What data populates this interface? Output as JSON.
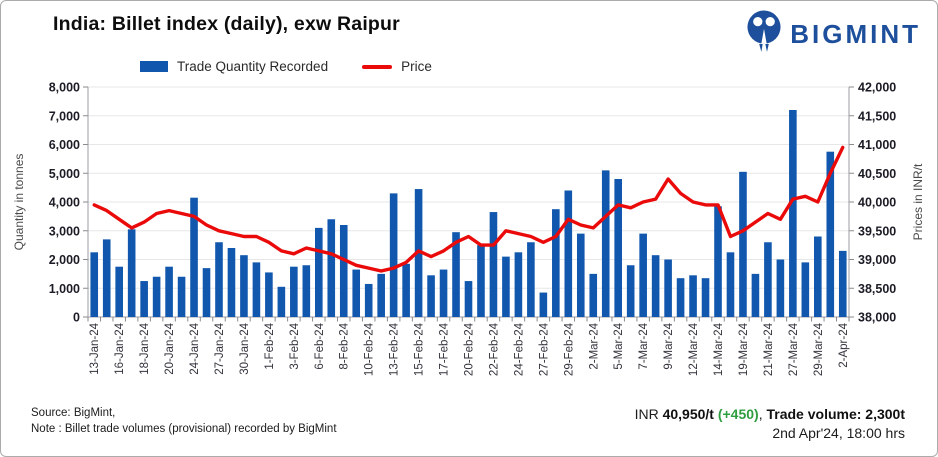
{
  "header": {
    "title": "India: Billet index (daily), exw Raipur",
    "logo_text": "BIGMINT",
    "logo_color": "#1d4f9c"
  },
  "legend": [
    {
      "label": "Trade Quantity Recorded",
      "color": "#1057ad",
      "type": "bar"
    },
    {
      "label": "Price",
      "color": "#ea0a0a",
      "type": "line"
    }
  ],
  "chart_data": {
    "type": "bar+line combo",
    "categories": [
      "13-Jan-24",
      "",
      "16-Jan-24",
      "",
      "18-Jan-24",
      "",
      "20-Jan-24",
      "",
      "24-Jan-24",
      "",
      "27-Jan-24",
      "",
      "30-Jan-24",
      "",
      "1-Feb-24",
      "",
      "3-Feb-24",
      "",
      "6-Feb-24",
      "",
      "8-Feb-24",
      "",
      "10-Feb-24",
      "",
      "13-Feb-24",
      "",
      "15-Feb-24",
      "",
      "17-Feb-24",
      "",
      "20-Feb-24",
      "",
      "22-Feb-24",
      "",
      "24-Feb-24",
      "",
      "27-Feb-24",
      "",
      "29-Feb-24",
      "",
      "2-Mar-24",
      "",
      "5-Mar-24",
      "",
      "7-Mar-24",
      "",
      "9-Mar-24",
      "",
      "12-Mar-24",
      "",
      "14-Mar-24",
      "",
      "19-Mar-24",
      "",
      "21-Mar-24",
      "",
      "27-Mar-24",
      "",
      "29-Mar-24",
      "",
      "2-Apr-24"
    ],
    "series": [
      {
        "name": "Trade Quantity Recorded",
        "type": "bar",
        "axis": "left",
        "color": "#1057ad",
        "values": [
          2250,
          2700,
          1750,
          3050,
          1250,
          1400,
          1750,
          1400,
          4150,
          1700,
          2600,
          2400,
          2150,
          1900,
          1550,
          1050,
          1750,
          1800,
          3100,
          3400,
          3200,
          1650,
          1150,
          1500,
          4300,
          1850,
          4450,
          1450,
          1650,
          2950,
          1250,
          2500,
          3650,
          2100,
          2250,
          2600,
          850,
          3750,
          4400,
          2900,
          1500,
          5100,
          4800,
          1800,
          2900,
          2150,
          2000,
          1350,
          1450,
          1350,
          3850,
          2250,
          5050,
          1500,
          2600,
          2000,
          7200,
          1900,
          2800,
          5750,
          2300
        ]
      },
      {
        "name": "Price",
        "type": "line",
        "axis": "right",
        "color": "#ea0a0a",
        "values": [
          39950,
          39850,
          39700,
          39550,
          39650,
          39800,
          39850,
          39800,
          39750,
          39600,
          39500,
          39450,
          39400,
          39400,
          39300,
          39150,
          39100,
          39200,
          39150,
          39100,
          39000,
          38900,
          38850,
          38800,
          38850,
          38950,
          39150,
          39050,
          39150,
          39300,
          39400,
          39250,
          39250,
          39500,
          39450,
          39400,
          39300,
          39400,
          39700,
          39600,
          39550,
          39750,
          39950,
          39900,
          40000,
          40050,
          40400,
          40150,
          40000,
          39950,
          39950,
          39400,
          39500,
          39650,
          39800,
          39700,
          40050,
          40100,
          40000,
          40500,
          40950
        ]
      }
    ],
    "left_axis": {
      "label": "Quantity in tonnes",
      "min": 0,
      "max": 8000,
      "step": 1000,
      "ticks": [
        "8,000",
        "7,000",
        "6,000",
        "5,000",
        "4,000",
        "3,000",
        "2,000",
        "1,000",
        "0"
      ]
    },
    "right_axis": {
      "label": "Prices in INR/t",
      "min": 38000,
      "max": 42000,
      "step": 500,
      "ticks": [
        "42,000",
        "41,500",
        "41,000",
        "40,500",
        "40,000",
        "39,500",
        "39,000",
        "38,500",
        "38,000"
      ]
    },
    "grid": true,
    "legend_position": "top"
  },
  "footer": {
    "source_line1": "Source: BigMint,",
    "source_line2": "Note : Billet trade volumes (provisional) recorded by BigMint",
    "price_prefix": "INR ",
    "price_value": "40,950/t",
    "price_change": " (+450)",
    "price_sep": ", ",
    "volume_label": "Trade volume: ",
    "volume_value": "2,300t",
    "timestamp": "2nd Apr'24, 18:00 hrs",
    "change_color": "#2f9e41"
  }
}
